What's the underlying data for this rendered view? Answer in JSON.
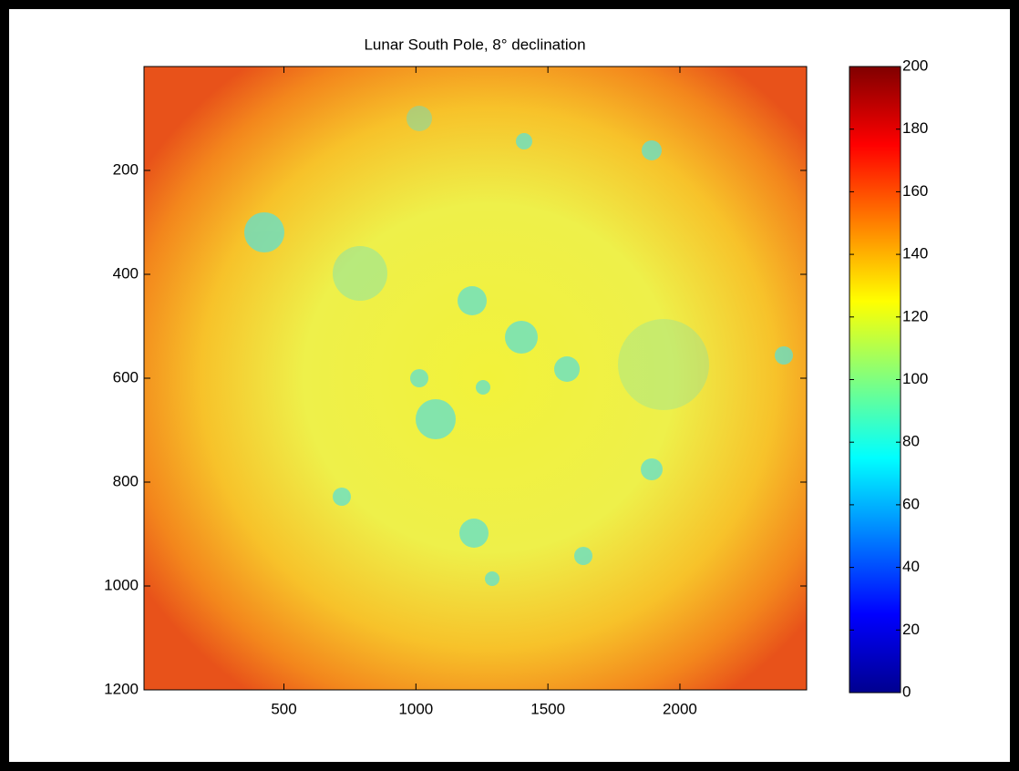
{
  "chart_data": {
    "type": "image",
    "title": "Lunar South Pole, 8° declination",
    "xlim": [
      -30,
      2480
    ],
    "xticks": [
      500,
      1000,
      1500,
      2000
    ],
    "ylim": [
      0,
      1200
    ],
    "yticks": [
      200,
      400,
      600,
      800,
      1000,
      1200
    ],
    "y_reversed": true,
    "colormap": "jet",
    "clim": [
      0,
      200
    ],
    "cticks": [
      0,
      20,
      40,
      60,
      80,
      100,
      120,
      140,
      160,
      180,
      200
    ]
  }
}
